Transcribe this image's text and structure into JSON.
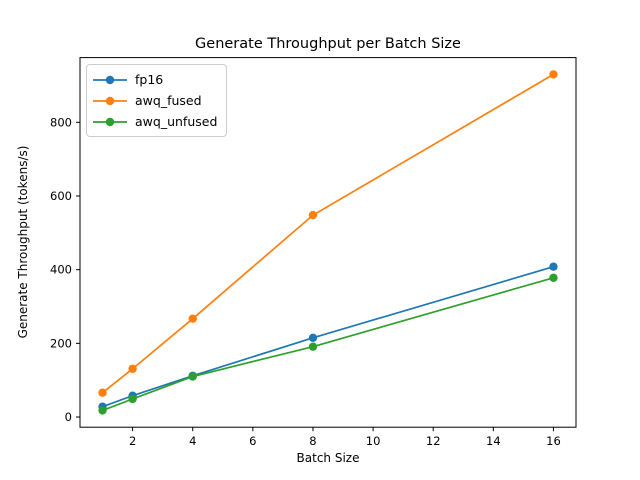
{
  "chart_data": {
    "type": "line",
    "title": "Generate Throughput per Batch Size",
    "xlabel": "Batch Size",
    "ylabel": "Generate Throughput (tokens/s)",
    "x": [
      1,
      2,
      4,
      8,
      16
    ],
    "series": [
      {
        "name": "fp16",
        "color": "#1f77b4",
        "values": [
          28,
          58,
          112,
          215,
          408
        ]
      },
      {
        "name": "awq_fused",
        "color": "#ff7f0e",
        "values": [
          66,
          131,
          267,
          548,
          930
        ]
      },
      {
        "name": "awq_unfused",
        "color": "#2ca02c",
        "values": [
          18,
          49,
          110,
          191,
          378
        ]
      }
    ],
    "xticks": [
      2,
      4,
      6,
      8,
      10,
      12,
      14,
      16
    ],
    "yticks": [
      0,
      200,
      400,
      600,
      800
    ],
    "xlim": [
      0.25,
      16.75
    ],
    "ylim": [
      -27.6,
      975.6
    ],
    "grid": false,
    "legend_position": "upper left",
    "marker": "circle",
    "marker_radius": 4.2,
    "line_width": 1.7,
    "colors": {
      "spine": "#000000",
      "text": "#000000",
      "legend_border": "#cccccc",
      "background": "#ffffff"
    }
  }
}
